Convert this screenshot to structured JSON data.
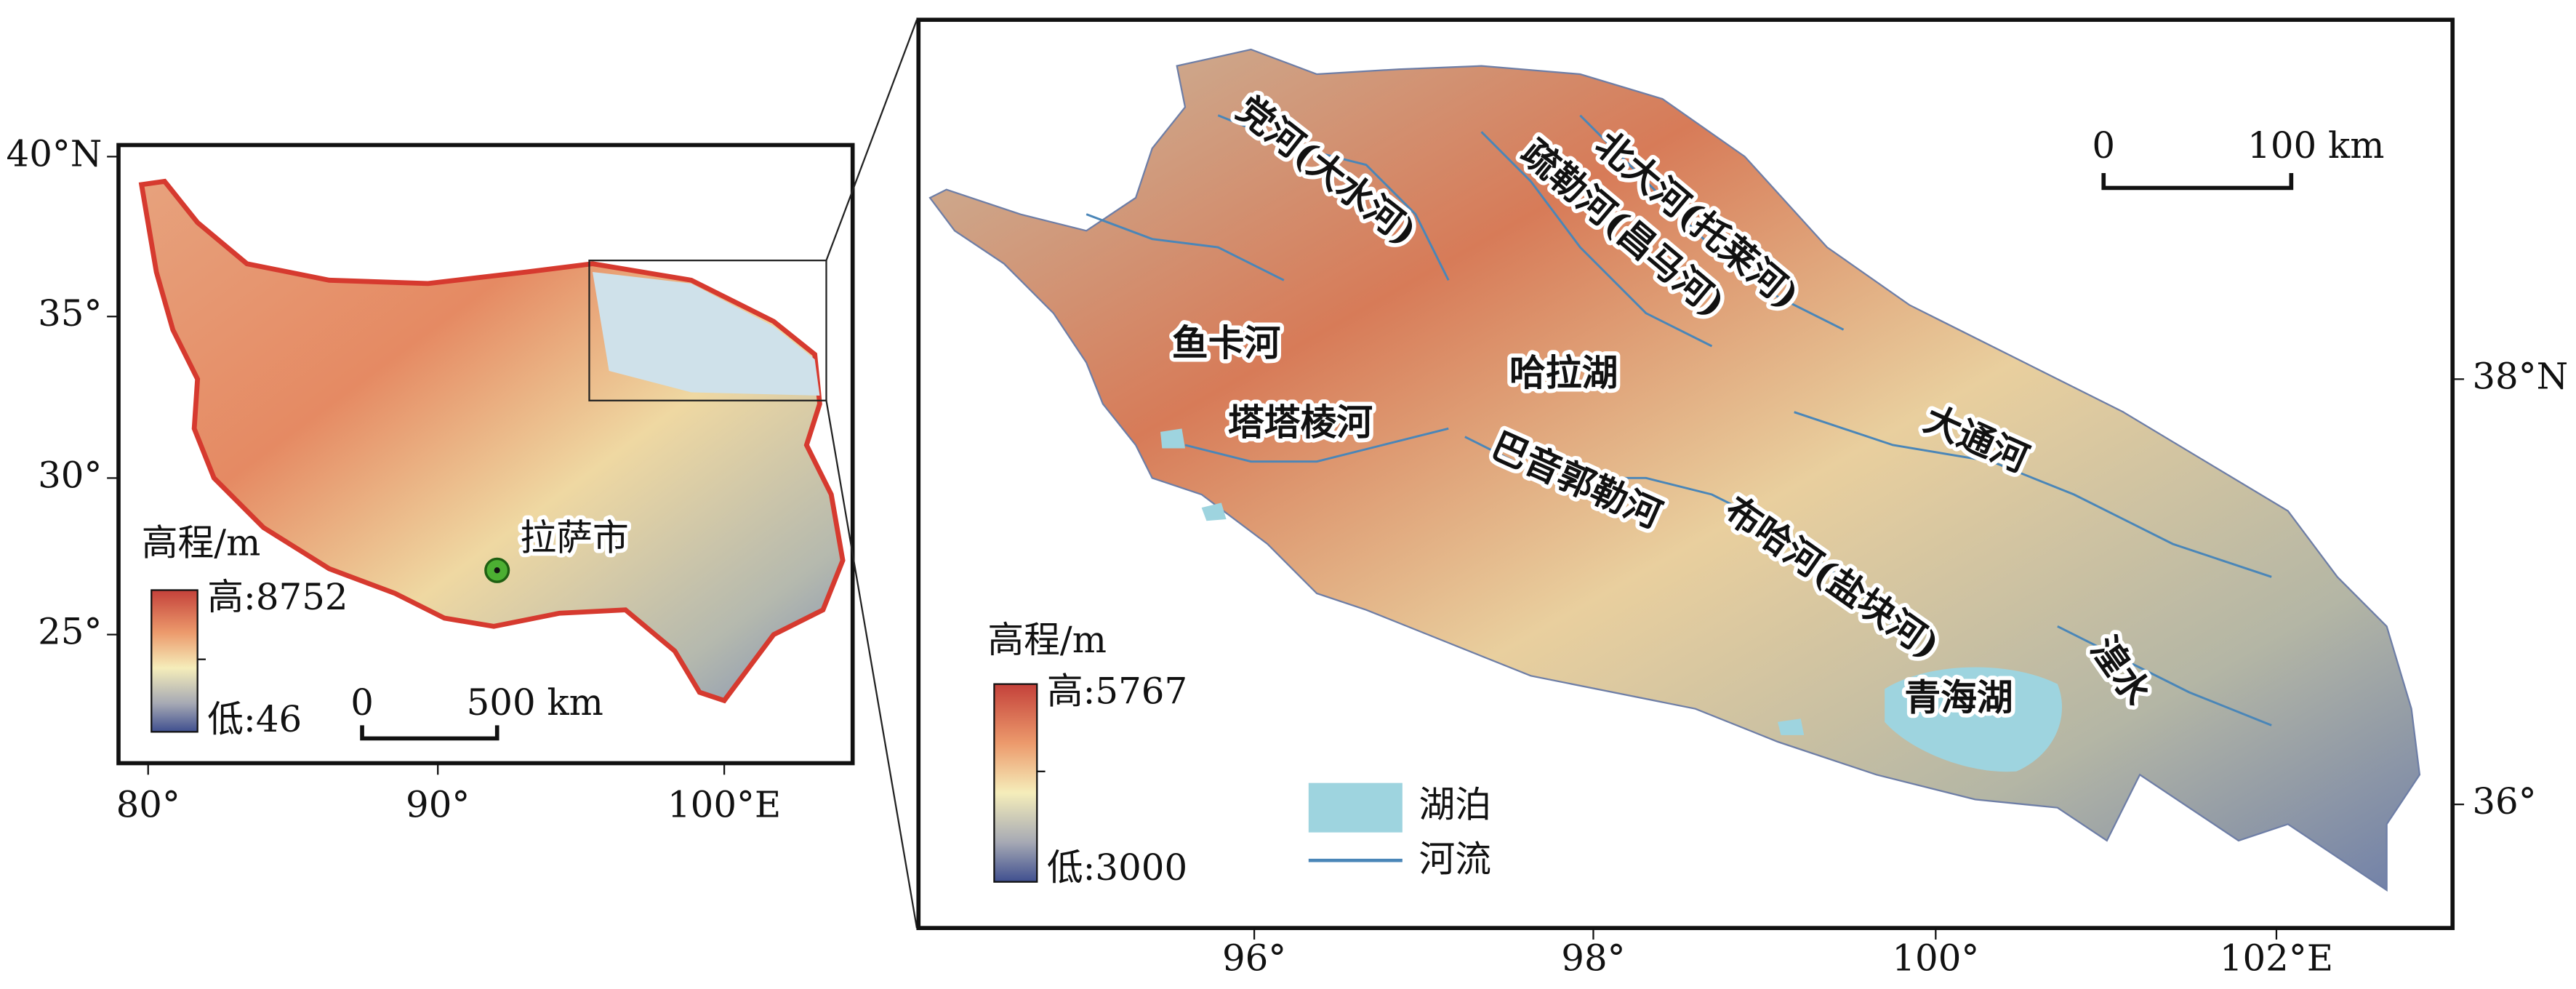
{
  "overview_map": {
    "x_tick_labels": [
      "80°",
      "90°",
      "100°E"
    ],
    "y_tick_labels": [
      "40°N",
      "35°",
      "30°",
      "25°"
    ],
    "legend": {
      "title": "高程/m",
      "high": "高:8752",
      "low": "低:46"
    },
    "scale_bar": {
      "zero": "0",
      "length": "500 km"
    },
    "place_label": "拉萨市"
  },
  "detail_map": {
    "x_tick_labels": [
      "96°",
      "98°",
      "100°",
      "102°E"
    ],
    "y_tick_labels": [
      "38°N",
      "36°"
    ],
    "legend": {
      "title": "高程/m",
      "high": "高:5767",
      "low": "低:3000",
      "lake": "湖泊",
      "river": "河流"
    },
    "scale_bar": {
      "zero": "0",
      "length": "100 km"
    },
    "river_labels": [
      "党河(大水河)",
      "疏勒河(昌马河)",
      "北大河(托莱河)",
      "鱼卡河",
      "哈拉湖",
      "塔塔棱河",
      "巴音郭勒河",
      "大通河",
      "布哈河(盐块河)",
      "青海湖",
      "湟水"
    ]
  }
}
